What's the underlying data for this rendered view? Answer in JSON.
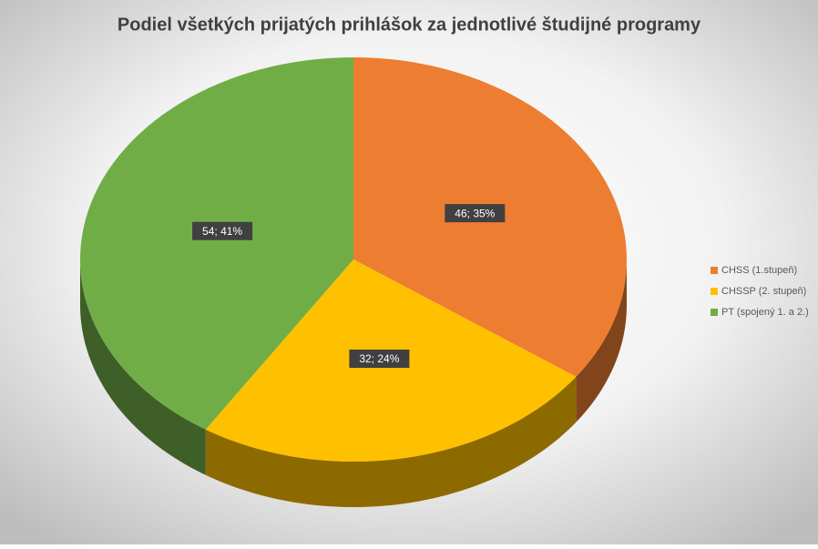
{
  "chart_data": {
    "type": "pie",
    "title": "Podiel všetkých prijatých prihlášok za jednotlivé študijné programy",
    "categories": [
      "CHSS (1.stupeň)",
      "CHSSP (2. stupeň)",
      "PT (spojený 1. a 2.)"
    ],
    "values": [
      46,
      32,
      54
    ],
    "value_labels": [
      "46; 35%",
      "32; 24%",
      "54; 41%"
    ],
    "colors": [
      "#ED7D31",
      "#FFC000",
      "#70AD47"
    ],
    "legend": "right"
  }
}
